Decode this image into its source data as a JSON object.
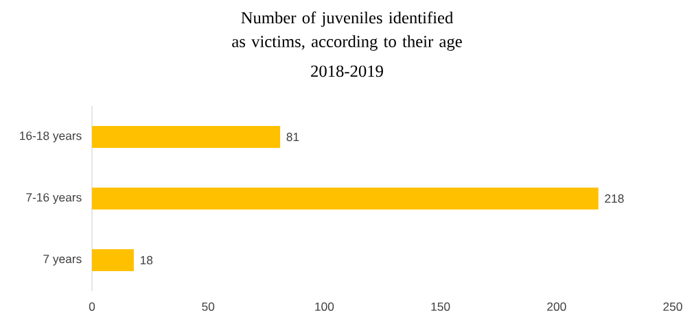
{
  "chart_data": {
    "type": "bar",
    "orientation": "horizontal",
    "title": "Number of juveniles identified  as victims, according to their age",
    "subtitle": "2018-2019",
    "categories": [
      "16-18 years",
      "7-16 years",
      "7 years"
    ],
    "values": [
      81,
      218,
      18
    ],
    "color": "#ffc000",
    "data_labels": true,
    "xlim": [
      0,
      250
    ],
    "xticks": [
      0,
      50,
      100,
      150,
      200,
      250
    ],
    "grid": false
  }
}
